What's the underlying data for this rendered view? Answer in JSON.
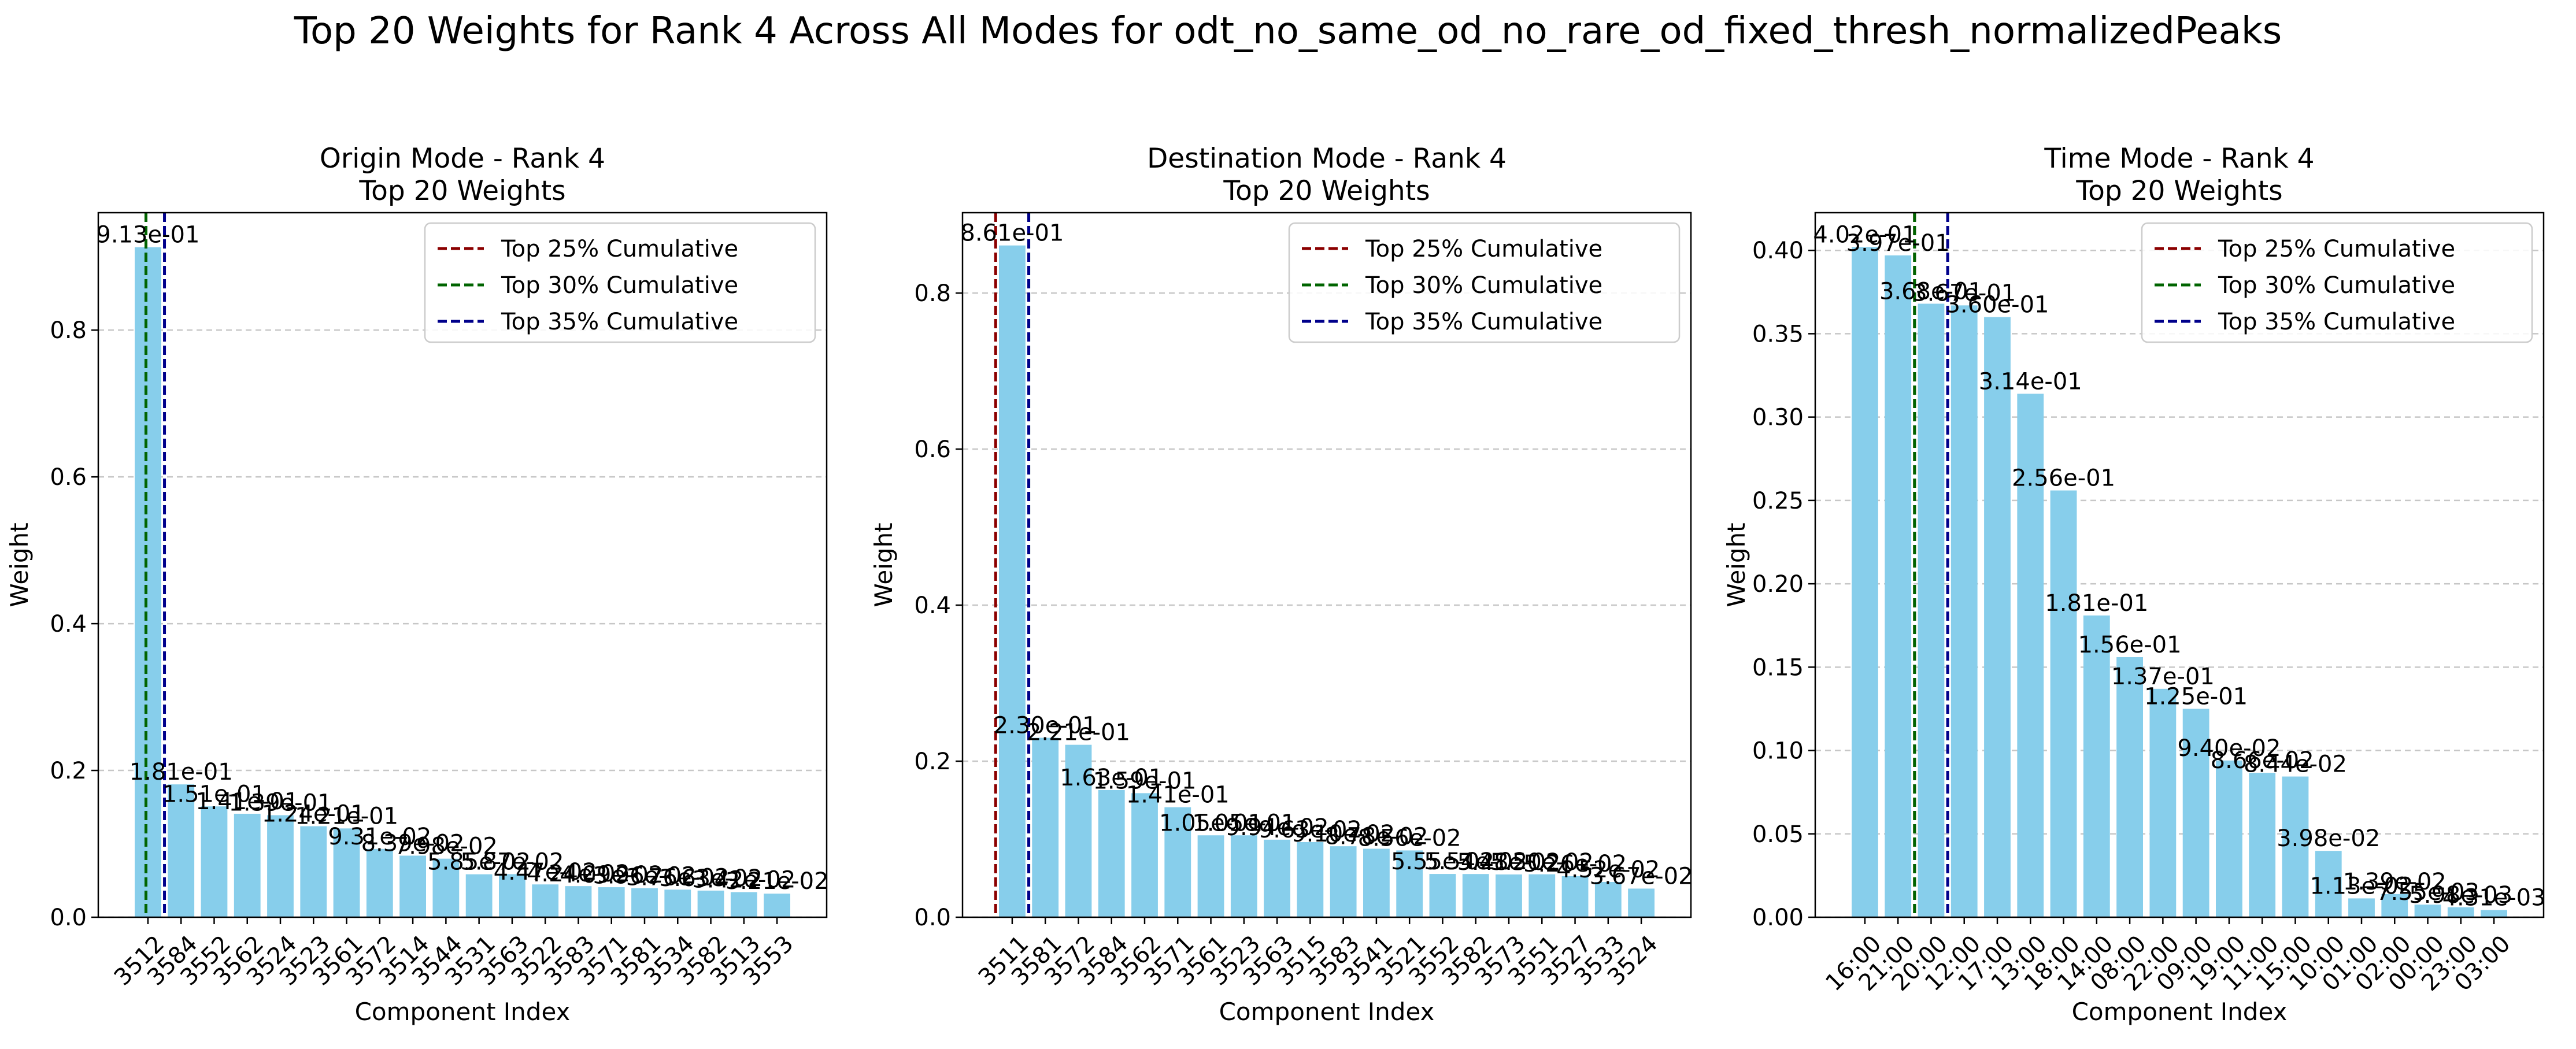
{
  "suptitle": "Top 20 Weights for Rank 4 Across All Modes for odt_no_same_od_no_rare_od_fixed_thresh_normalizedPeaks",
  "colors": {
    "bar": "#87ceeb",
    "top25": "#8b0000",
    "top30": "#006400",
    "top35": "#00008b",
    "grid": "#b0b0b0"
  },
  "chart_data": [
    {
      "type": "bar",
      "title": "Origin Mode - Rank 4\nTop 20 Weights",
      "xlabel": "Component Index",
      "ylabel": "Weight",
      "ylim": [
        0,
        0.96
      ],
      "yticks": [
        0.0,
        0.2,
        0.4,
        0.6,
        0.8
      ],
      "ytick_labels": [
        "0.0",
        "0.2",
        "0.4",
        "0.6",
        "0.8"
      ],
      "grid": "y-dashed",
      "legend_position": "top-right",
      "categories": [
        "3512",
        "3584",
        "3552",
        "3562",
        "3524",
        "3523",
        "3561",
        "3572",
        "3514",
        "3544",
        "3531",
        "3563",
        "3522",
        "3583",
        "3571",
        "3581",
        "3534",
        "3582",
        "3513",
        "3553"
      ],
      "values": [
        0.913,
        0.181,
        0.151,
        0.141,
        0.139,
        0.124,
        0.121,
        0.0931,
        0.0839,
        0.0798,
        0.0585,
        0.0587,
        0.0447,
        0.0424,
        0.0409,
        0.0396,
        0.0376,
        0.0363,
        0.0342,
        0.0321
      ],
      "data_labels": [
        "9.13e-01",
        "1.81e-01",
        "1.51e-01",
        "1.41e-01",
        "1.39e-01",
        "1.24e-01",
        "1.21e-01",
        "9.31e-02",
        "8.39e-02",
        "7.98e-02",
        "5.85e-02",
        "5.87e-02",
        "4.47e-02",
        "4.24e-02",
        "4.09e-02",
        "3.96e-02",
        "3.76e-02",
        "3.63e-02",
        "3.42e-02",
        "3.21e-02"
      ],
      "cum_lines": [
        {
          "name": "Top 25% Cumulative",
          "x": -0.06
        },
        {
          "name": "Top 30% Cumulative",
          "x": -0.06
        },
        {
          "name": "Top 35% Cumulative",
          "x": 0.5
        }
      ]
    },
    {
      "type": "bar",
      "title": "Destination Mode - Rank 4\nTop 20 Weights",
      "xlabel": "Component Index",
      "ylabel": "Weight",
      "ylim": [
        0,
        0.903
      ],
      "yticks": [
        0.0,
        0.2,
        0.4,
        0.6,
        0.8
      ],
      "ytick_labels": [
        "0.0",
        "0.2",
        "0.4",
        "0.6",
        "0.8"
      ],
      "grid": "y-dashed",
      "legend_position": "top-right",
      "categories": [
        "3511",
        "3581",
        "3572",
        "3584",
        "3562",
        "3571",
        "3561",
        "3523",
        "3563",
        "3515",
        "3583",
        "3541",
        "3521",
        "3552",
        "3582",
        "3573",
        "3551",
        "3527",
        "3533",
        "3524"
      ],
      "values": [
        0.861,
        0.23,
        0.221,
        0.163,
        0.159,
        0.141,
        0.105,
        0.105,
        0.0994,
        0.0963,
        0.091,
        0.0878,
        0.0856,
        0.0555,
        0.0554,
        0.0548,
        0.055,
        0.0526,
        0.0452,
        0.0367
      ],
      "data_labels": [
        "8.61e-01",
        "2.30e-01",
        "2.21e-01",
        "1.63e-01",
        "1.59e-01",
        "1.41e-01",
        "1.05e-01",
        "1.05e-01",
        "9.94e-02",
        "9.63e-02",
        "9.10e-02",
        "8.78e-02",
        "8.56e-02",
        "5.55e-02",
        "5.54e-02",
        "5.48e-02",
        "5.50e-02",
        "5.26e-02",
        "4.52e-02",
        "3.67e-02"
      ],
      "cum_lines": [
        {
          "name": "Top 25% Cumulative",
          "x": -0.5
        },
        {
          "name": "Top 30% Cumulative",
          "x": 0.5
        },
        {
          "name": "Top 35% Cumulative",
          "x": 0.5
        }
      ]
    },
    {
      "type": "bar",
      "title": "Time Mode - Rank 4\nTop 20 Weights",
      "xlabel": "Component Index",
      "ylabel": "Weight",
      "ylim": [
        0,
        0.4226
      ],
      "yticks": [
        0.0,
        0.05,
        0.1,
        0.15,
        0.2,
        0.25,
        0.3,
        0.35,
        0.4
      ],
      "ytick_labels": [
        "0.00",
        "0.05",
        "0.10",
        "0.15",
        "0.20",
        "0.25",
        "0.30",
        "0.35",
        "0.40"
      ],
      "grid": "y-dashed",
      "legend_position": "top-right",
      "categories": [
        "16:00",
        "21:00",
        "20:00",
        "12:00",
        "17:00",
        "13:00",
        "18:00",
        "14:00",
        "08:00",
        "22:00",
        "09:00",
        "19:00",
        "11:00",
        "15:00",
        "10:00",
        "01:00",
        "02:00",
        "00:00",
        "23:00",
        "03:00"
      ],
      "values": [
        0.402,
        0.397,
        0.368,
        0.367,
        0.36,
        0.314,
        0.256,
        0.181,
        0.156,
        0.137,
        0.125,
        0.094,
        0.0866,
        0.0844,
        0.0398,
        0.0113,
        0.0139,
        0.00755,
        0.00598,
        0.00431
      ],
      "data_labels": [
        "4.02e-01",
        "3.97e-01",
        "3.68e-01",
        "3.67e-01",
        "3.60e-01",
        "3.14e-01",
        "2.56e-01",
        "1.81e-01",
        "1.56e-01",
        "1.37e-01",
        "1.25e-01",
        "9.40e-02",
        "8.66e-02",
        "8.44e-02",
        "3.98e-02",
        "1.13e-02",
        "1.39e-02",
        "7.55e-03",
        "5.98e-03",
        "4.31e-03"
      ],
      "cum_lines": [
        {
          "name": "Top 25% Cumulative",
          "x": 1.5
        },
        {
          "name": "Top 30% Cumulative",
          "x": 1.5
        },
        {
          "name": "Top 35% Cumulative",
          "x": 2.5
        }
      ]
    }
  ]
}
